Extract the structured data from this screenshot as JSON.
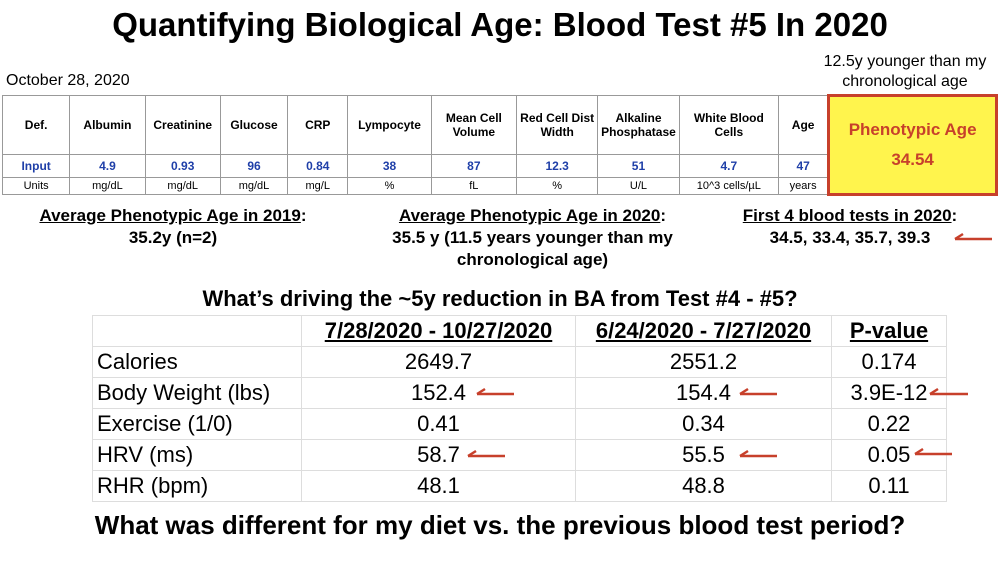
{
  "title": "Quantifying Biological Age: Blood Test #5 In 2020",
  "date": "October 28, 2020",
  "note": "12.5y younger than my chronological age",
  "blood_table": {
    "header": [
      "Def.",
      "Albumin",
      "Creatinine",
      "Glucose",
      "CRP",
      "Lympocyte",
      "Mean Cell Volume",
      "Red Cell Dist Width",
      "Alkaline Phosphatase",
      "White Blood Cells",
      "Age",
      "Phenotypic Age"
    ],
    "input": [
      "Input",
      4.9,
      0.93,
      96,
      0.84,
      38,
      87,
      12.3,
      51,
      4.7,
      47,
      34.54
    ],
    "units": [
      "Units",
      "mg/dL",
      "mg/dL",
      "mg/dL",
      "mg/L",
      "%",
      "fL",
      "%",
      "U/L",
      "10^3 cells/µL",
      "years"
    ]
  },
  "summaries": [
    {
      "heading": "Average Phenotypic Age in 2019",
      "text": "35.2y (n=2)"
    },
    {
      "heading": "Average Phenotypic Age in 2020",
      "text": "35.5 y (11.5 years younger than my chronological age)"
    },
    {
      "heading": "First 4 blood tests in 2020",
      "text": "34.5, 33.4, 35.7, 39.3"
    }
  ],
  "question": "What’s driving the ~5y reduction in BA from Test #4 - #5?",
  "compare_table": {
    "columns": [
      "7/28/2020 - 10/27/2020",
      "6/24/2020 - 7/27/2020",
      "P-value"
    ],
    "rows": [
      {
        "label": "Calories",
        "values": [
          2649.7,
          2551.2,
          0.174
        ]
      },
      {
        "label": "Body Weight (lbs)",
        "values": [
          152.4,
          154.4,
          "3.9E-12"
        ]
      },
      {
        "label": "Exercise (1/0)",
        "values": [
          0.41,
          0.34,
          0.22
        ]
      },
      {
        "label": "HRV (ms)",
        "values": [
          58.7,
          55.5,
          0.05
        ]
      },
      {
        "label": "RHR (bpm)",
        "values": [
          48.1,
          48.8,
          0.11
        ]
      }
    ]
  },
  "footer": "What was different for my diet vs. the previous blood test period?"
}
